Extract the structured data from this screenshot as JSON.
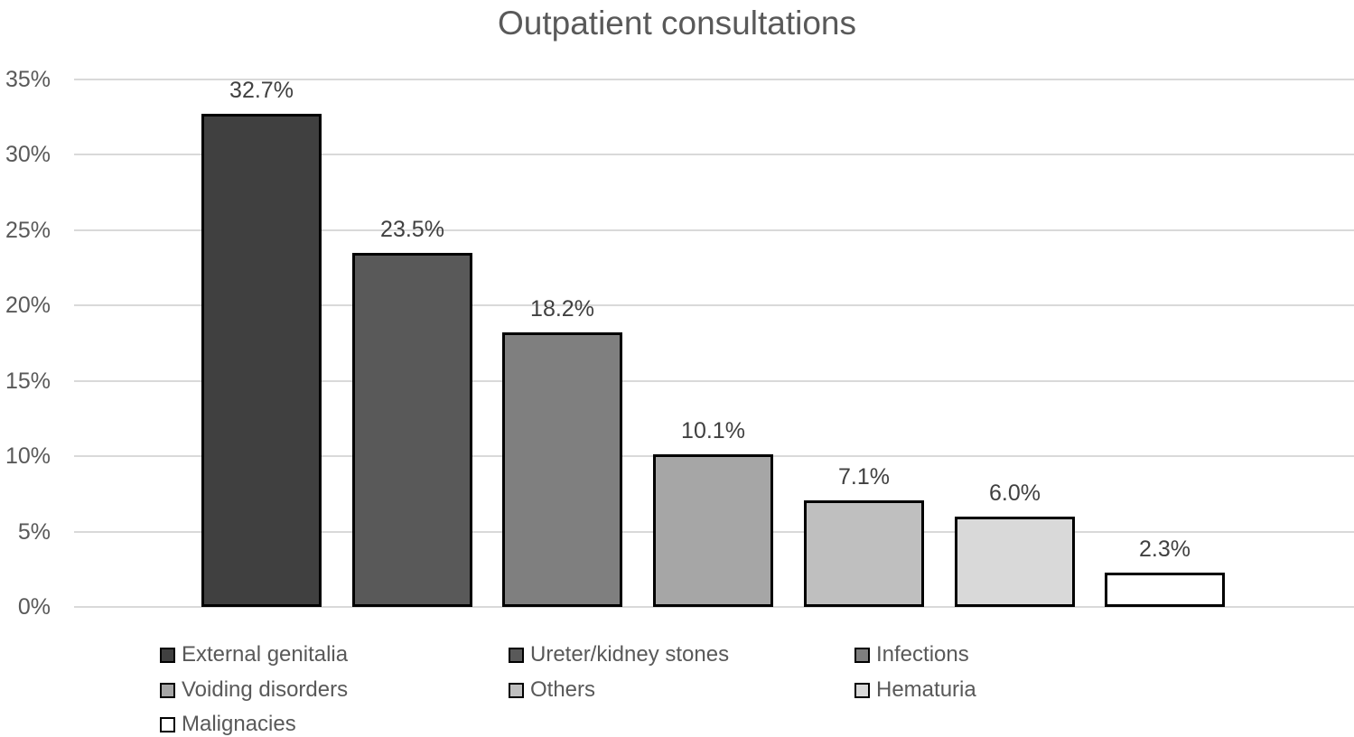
{
  "title": "Outpatient consultations",
  "chart_data": {
    "type": "bar",
    "title": "Outpatient consultations",
    "categories": [
      "External genitalia",
      "Ureter/kidney stones",
      "Infections",
      "Voiding disorders",
      "Others",
      "Hematuria",
      "Malignacies"
    ],
    "values": [
      32.7,
      23.5,
      18.2,
      10.1,
      7.1,
      6.0,
      2.3
    ],
    "value_labels": [
      "32.7%",
      "23.5%",
      "18.2%",
      "10.1%",
      "7.1%",
      "6.0%",
      "2.3%"
    ],
    "bar_colors": [
      "#404040",
      "#595959",
      "#7f7f7f",
      "#a6a6a6",
      "#bfbfbf",
      "#d9d9d9",
      "#ffffff"
    ],
    "bar_border_color": "#000000",
    "xlabel": "",
    "ylabel": "",
    "ylim": [
      0,
      35
    ],
    "ytick_interval": 5,
    "ytick_labels": [
      "0%",
      "5%",
      "10%",
      "15%",
      "20%",
      "25%",
      "30%",
      "35%"
    ],
    "grid": true,
    "gridline_color": "#d9d9d9",
    "axis_text_color": "#595959",
    "data_label_color": "#404040",
    "title_color": "#595959",
    "legend_position": "bottom",
    "legend": [
      {
        "label": "External genitalia",
        "color": "#404040"
      },
      {
        "label": "Ureter/kidney stones",
        "color": "#595959"
      },
      {
        "label": "Infections",
        "color": "#7f7f7f"
      },
      {
        "label": "Voiding disorders",
        "color": "#a6a6a6"
      },
      {
        "label": "Others",
        "color": "#bfbfbf"
      },
      {
        "label": "Hematuria",
        "color": "#d9d9d9"
      },
      {
        "label": "Malignacies",
        "color": "#ffffff"
      }
    ]
  }
}
